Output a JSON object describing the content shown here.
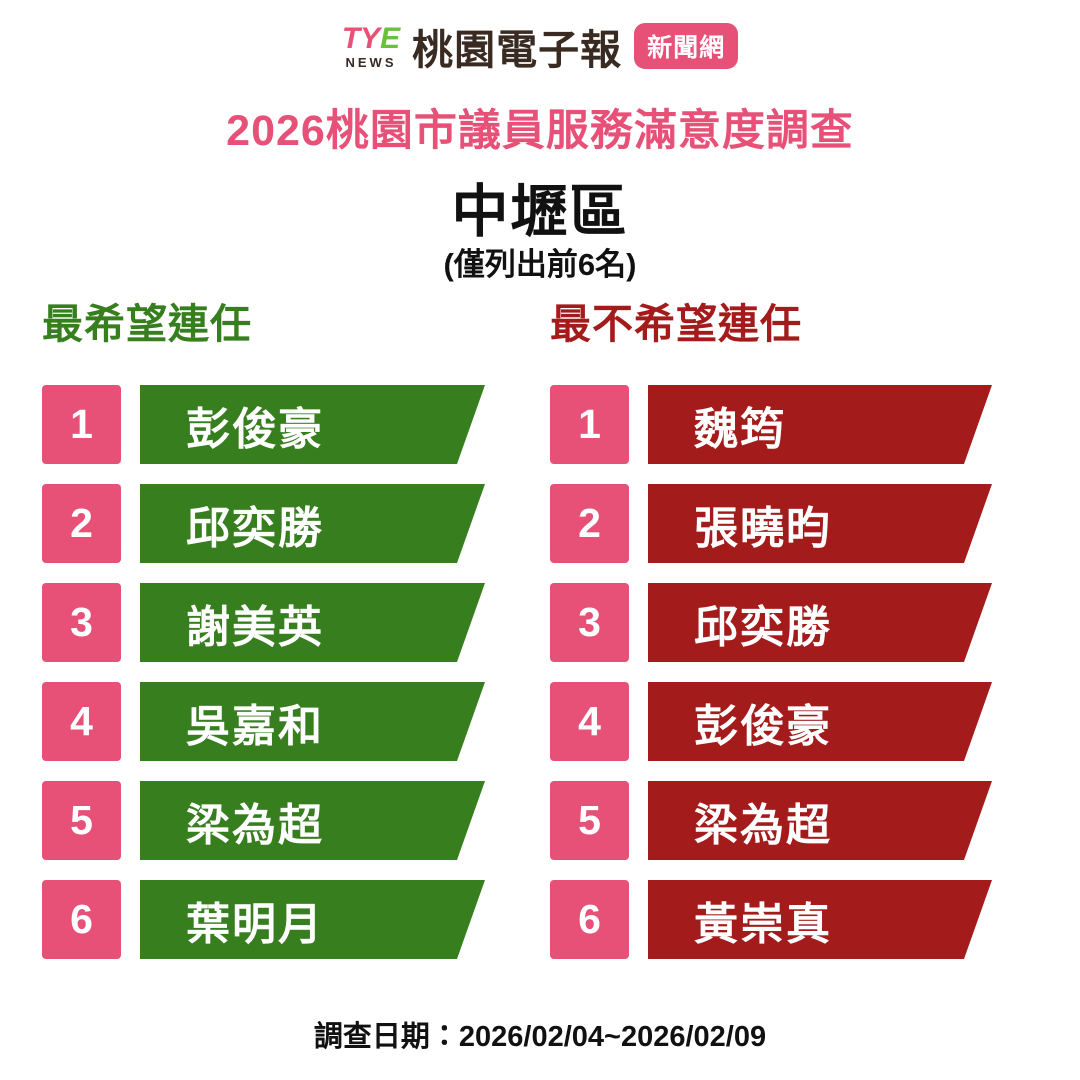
{
  "logo": {
    "mark_ty": "TY",
    "mark_e": "E",
    "news": "NEWS",
    "brand": "桃園電子報",
    "badge": "新聞網"
  },
  "header": {
    "survey_title": "2026桃園市議員服務滿意度調查",
    "district": "中壢區",
    "note": "(僅列出前6名)"
  },
  "columns": {
    "hope": {
      "header": "最希望連任",
      "items": [
        {
          "rank": "1",
          "name": "彭俊豪"
        },
        {
          "rank": "2",
          "name": "邱奕勝"
        },
        {
          "rank": "3",
          "name": "謝美英"
        },
        {
          "rank": "4",
          "name": "吳嘉和"
        },
        {
          "rank": "5",
          "name": "梁為超"
        },
        {
          "rank": "6",
          "name": "葉明月"
        }
      ]
    },
    "not_hope": {
      "header": "最不希望連任",
      "items": [
        {
          "rank": "1",
          "name": "魏筠"
        },
        {
          "rank": "2",
          "name": "張曉昀"
        },
        {
          "rank": "3",
          "name": "邱奕勝"
        },
        {
          "rank": "4",
          "name": "彭俊豪"
        },
        {
          "rank": "5",
          "name": "梁為超"
        },
        {
          "rank": "6",
          "name": "黃崇真"
        }
      ]
    }
  },
  "footer": {
    "survey_date": "調查日期：2026/02/04~2026/02/09"
  },
  "colors": {
    "pink": "#E75077",
    "green": "#377E1F",
    "dark_red": "#A31B1B",
    "logo_dark": "#3A2B22",
    "tye_green": "#6ABF3F",
    "white": "#FFFFFF"
  },
  "chart_data": {
    "type": "table",
    "title": "2026桃園市議員服務滿意度調查",
    "subtitle": "中壢區 (僅列出前6名)",
    "columns": [
      "最希望連任",
      "最不希望連任"
    ],
    "rows": [
      {
        "rank": 1,
        "最希望連任": "彭俊豪",
        "最不希望連任": "魏筠"
      },
      {
        "rank": 2,
        "最希望連任": "邱奕勝",
        "最不希望連任": "張曉昀"
      },
      {
        "rank": 3,
        "最希望連任": "謝美英",
        "最不希望連任": "邱奕勝"
      },
      {
        "rank": 4,
        "最希望連任": "吳嘉和",
        "最不希望連任": "彭俊豪"
      },
      {
        "rank": 5,
        "最希望連任": "梁為超",
        "最不希望連任": "梁為超"
      },
      {
        "rank": 6,
        "最希望連任": "葉明月",
        "最不希望連任": "黃崇真"
      }
    ],
    "note": "調查日期：2026/02/04~2026/02/09",
    "legend_colors": {
      "最希望連任": "#377E1F",
      "最不希望連任": "#A31B1B"
    }
  }
}
